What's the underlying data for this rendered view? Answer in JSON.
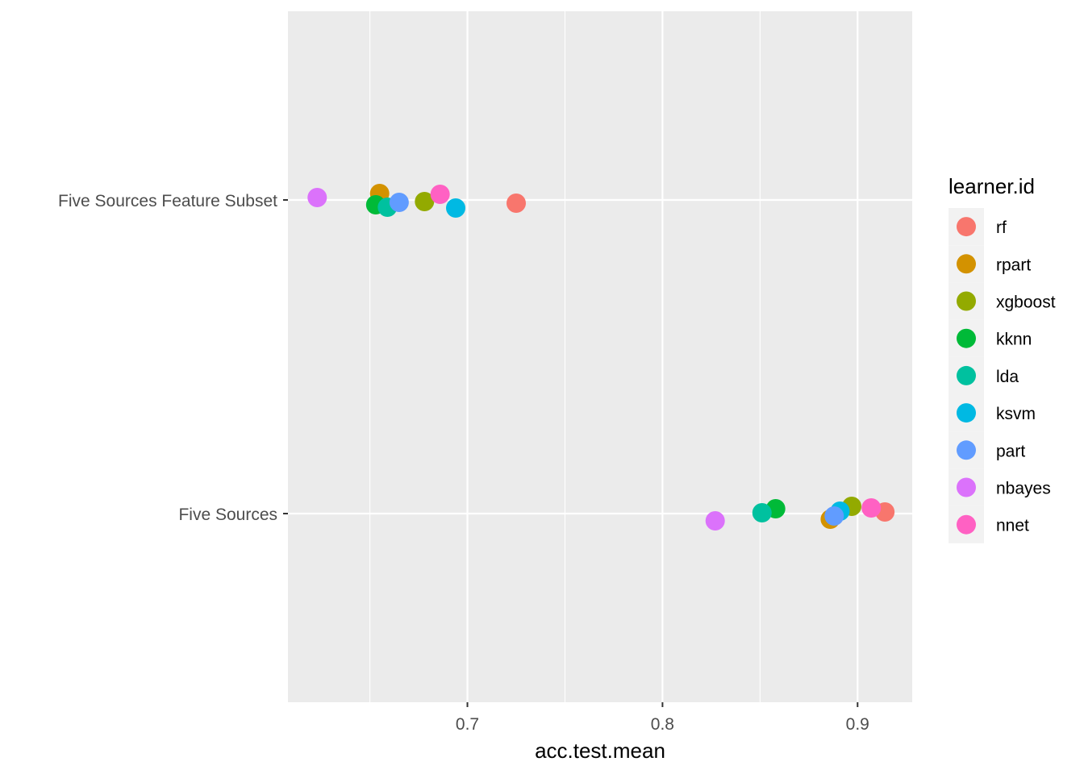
{
  "chart_data": {
    "type": "scatter",
    "title": "",
    "xlabel": "acc.test.mean",
    "ylabel": "",
    "xlim": [
      0.608,
      0.928
    ],
    "x_ticks": [
      {
        "value": 0.7,
        "label": "0.7"
      },
      {
        "value": 0.8,
        "label": "0.8"
      },
      {
        "value": 0.9,
        "label": "0.9"
      }
    ],
    "x_minor_ticks": [
      0.65,
      0.75,
      0.85
    ],
    "categories": [
      "Five Sources Feature Subset",
      "Five Sources"
    ],
    "grid": true,
    "legend": {
      "title": "learner.id",
      "position": "right"
    },
    "series": [
      {
        "name": "rf",
        "color": "#F8766D",
        "points": [
          {
            "category": "Five Sources Feature Subset",
            "x": 0.725,
            "jitter": -0.02
          },
          {
            "category": "Five Sources",
            "x": 0.914,
            "jitter": 0.01
          }
        ]
      },
      {
        "name": "rpart",
        "color": "#D39200",
        "points": [
          {
            "category": "Five Sources Feature Subset",
            "x": 0.655,
            "jitter": 0.04
          },
          {
            "category": "Five Sources",
            "x": 0.886,
            "jitter": -0.035
          }
        ]
      },
      {
        "name": "xgboost",
        "color": "#93AA00",
        "points": [
          {
            "category": "Five Sources Feature Subset",
            "x": 0.678,
            "jitter": -0.01
          },
          {
            "category": "Five Sources",
            "x": 0.897,
            "jitter": 0.045
          }
        ]
      },
      {
        "name": "kknn",
        "color": "#00BA38",
        "points": [
          {
            "category": "Five Sources Feature Subset",
            "x": 0.653,
            "jitter": -0.03
          },
          {
            "category": "Five Sources",
            "x": 0.858,
            "jitter": 0.03
          }
        ]
      },
      {
        "name": "lda",
        "color": "#00C19F",
        "points": [
          {
            "category": "Five Sources Feature Subset",
            "x": 0.659,
            "jitter": -0.045
          },
          {
            "category": "Five Sources",
            "x": 0.851,
            "jitter": 0.005
          }
        ]
      },
      {
        "name": "ksvm",
        "color": "#00B9E3",
        "points": [
          {
            "category": "Five Sources Feature Subset",
            "x": 0.694,
            "jitter": -0.05
          },
          {
            "category": "Five Sources",
            "x": 0.891,
            "jitter": 0.015
          }
        ]
      },
      {
        "name": "part",
        "color": "#619CFF",
        "points": [
          {
            "category": "Five Sources Feature Subset",
            "x": 0.665,
            "jitter": -0.015
          },
          {
            "category": "Five Sources",
            "x": 0.888,
            "jitter": -0.015
          }
        ]
      },
      {
        "name": "nbayes",
        "color": "#DB72FB",
        "points": [
          {
            "category": "Five Sources Feature Subset",
            "x": 0.623,
            "jitter": 0.015
          },
          {
            "category": "Five Sources",
            "x": 0.827,
            "jitter": -0.045
          }
        ]
      },
      {
        "name": "nnet",
        "color": "#FF61C3",
        "points": [
          {
            "category": "Five Sources Feature Subset",
            "x": 0.686,
            "jitter": 0.035
          },
          {
            "category": "Five Sources",
            "x": 0.907,
            "jitter": 0.035
          }
        ]
      }
    ]
  }
}
